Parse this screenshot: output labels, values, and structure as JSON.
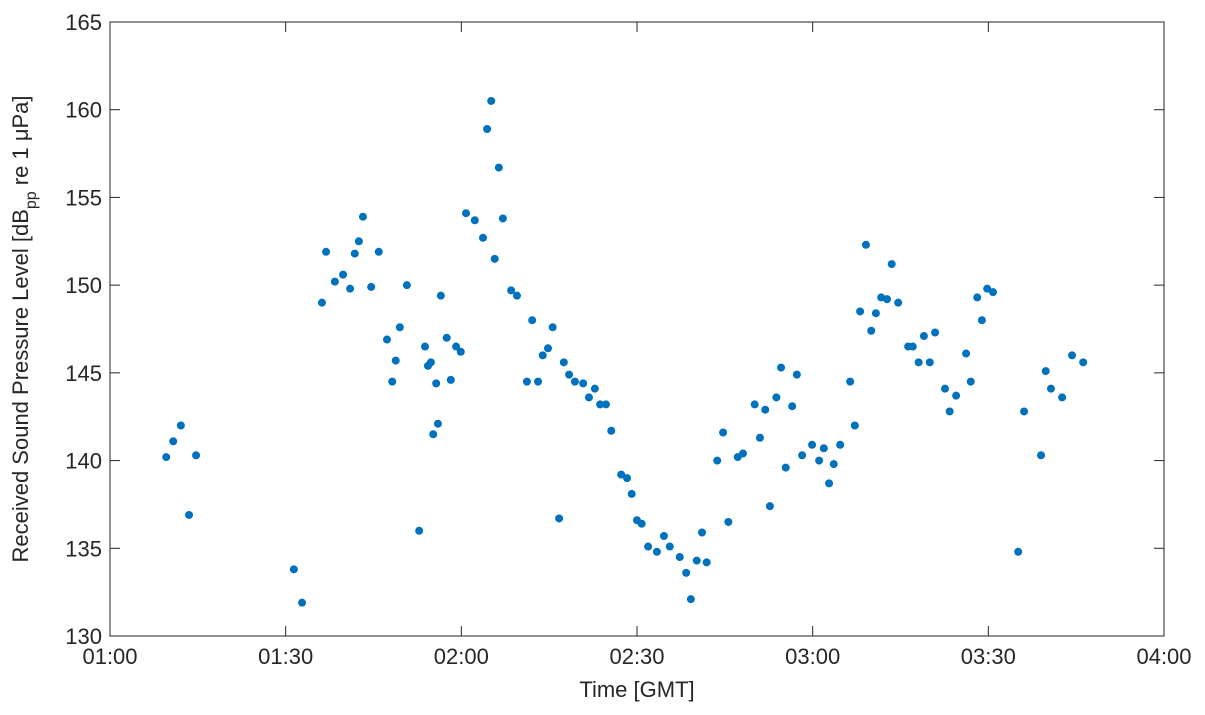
{
  "chart_data": {
    "type": "scatter",
    "xlabel": "Time [GMT]",
    "ylabel": {
      "text": "Received Sound Pressure Level [dB",
      "subscript": "pp",
      "rest": " re 1 μPa]"
    },
    "color": "#0072bd",
    "xlim": [
      60,
      240
    ],
    "xticks": [
      {
        "value": 60,
        "label": "01:00"
      },
      {
        "value": 90,
        "label": "01:30"
      },
      {
        "value": 120,
        "label": "02:00"
      },
      {
        "value": 150,
        "label": "02:30"
      },
      {
        "value": 180,
        "label": "03:00"
      },
      {
        "value": 210,
        "label": "03:30"
      },
      {
        "value": 240,
        "label": "04:00"
      }
    ],
    "ylim": [
      130,
      165
    ],
    "yticks": [
      130,
      135,
      140,
      145,
      150,
      155,
      160,
      165
    ],
    "x": [
      69.6,
      70.8,
      72.1,
      73.5,
      74.7,
      91.4,
      92.8,
      96.2,
      96.9,
      98.4,
      99.8,
      101.0,
      101.8,
      102.5,
      103.2,
      104.6,
      105.9,
      107.3,
      108.2,
      108.8,
      109.5,
      110.7,
      112.8,
      113.8,
      114.3,
      114.8,
      115.2,
      115.7,
      116.0,
      116.5,
      117.5,
      118.2,
      119.1,
      119.9,
      120.8,
      122.3,
      123.7,
      124.4,
      125.1,
      125.7,
      126.4,
      127.1,
      128.5,
      129.5,
      131.2,
      132.1,
      133.1,
      133.9,
      134.8,
      135.6,
      136.7,
      137.5,
      138.4,
      139.4,
      140.8,
      141.8,
      142.8,
      143.7,
      144.7,
      145.6,
      147.3,
      148.3,
      149.1,
      150.0,
      150.8,
      151.9,
      153.4,
      154.6,
      155.6,
      157.3,
      158.4,
      159.2,
      160.2,
      161.1,
      161.9,
      163.7,
      164.7,
      165.6,
      167.2,
      168.1,
      170.1,
      171.0,
      171.9,
      172.7,
      173.8,
      174.6,
      175.4,
      176.5,
      177.3,
      178.2,
      179.9,
      181.1,
      181.9,
      182.8,
      183.6,
      184.7,
      186.4,
      187.2,
      188.1,
      189.1,
      190.0,
      190.8,
      191.7,
      192.7,
      193.5,
      194.6,
      196.3,
      197.1,
      198.1,
      199.0,
      200.0,
      200.9,
      202.6,
      203.4,
      204.5,
      206.2,
      207.0,
      208.1,
      208.9,
      209.8,
      210.8,
      215.1,
      216.1,
      219.0,
      219.8,
      220.7,
      222.6,
      224.3,
      226.2
    ],
    "values": [
      140.2,
      141.1,
      142.0,
      136.9,
      140.3,
      133.8,
      131.9,
      149.0,
      151.9,
      150.2,
      150.6,
      149.8,
      151.8,
      152.5,
      153.9,
      149.9,
      151.9,
      146.9,
      144.5,
      145.7,
      147.6,
      150.0,
      136.0,
      146.5,
      145.4,
      145.6,
      141.5,
      144.4,
      142.1,
      149.4,
      147.0,
      144.6,
      146.5,
      146.2,
      154.1,
      153.7,
      152.7,
      158.9,
      160.5,
      151.5,
      156.7,
      153.8,
      149.7,
      149.4,
      144.5,
      148.0,
      144.5,
      146.0,
      146.4,
      147.6,
      136.7,
      145.6,
      144.9,
      144.5,
      144.4,
      143.6,
      144.1,
      143.2,
      143.2,
      141.7,
      139.2,
      139.0,
      138.1,
      136.6,
      136.4,
      135.1,
      134.8,
      135.7,
      135.1,
      134.5,
      133.6,
      132.1,
      134.3,
      135.9,
      134.2,
      140.0,
      141.6,
      136.5,
      140.2,
      140.4,
      143.2,
      141.3,
      142.9,
      137.4,
      143.6,
      145.3,
      139.6,
      143.1,
      144.9,
      140.3,
      140.9,
      140.0,
      140.7,
      138.7,
      139.8,
      140.9,
      144.5,
      142.0,
      148.5,
      152.3,
      147.4,
      148.4,
      149.3,
      149.2,
      151.2,
      149.0,
      146.5,
      146.5,
      145.6,
      147.1,
      145.6,
      147.3,
      144.1,
      142.8,
      143.7,
      146.1,
      144.5,
      149.3,
      148.0,
      149.8,
      149.6,
      134.8,
      142.8,
      140.3,
      145.1,
      144.1,
      143.6,
      146.0,
      145.6
    ]
  }
}
